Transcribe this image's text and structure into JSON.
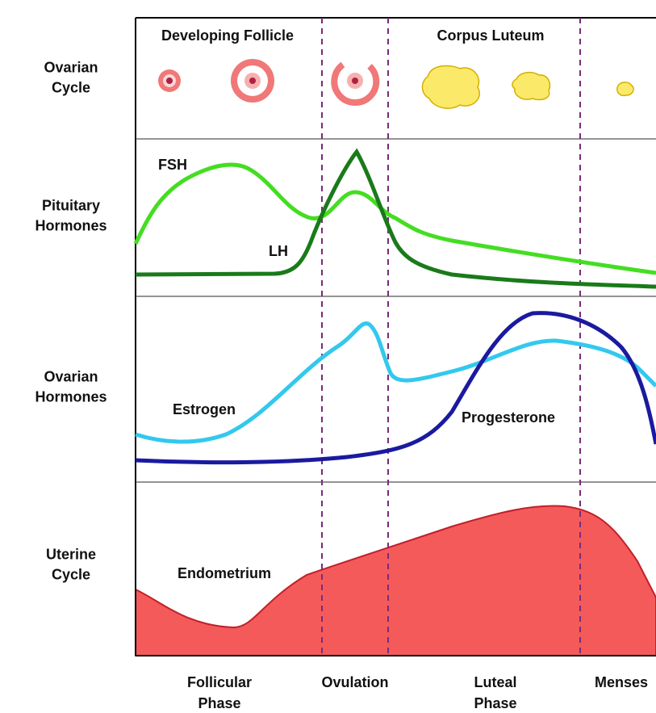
{
  "rows": [
    [
      "Ovarian",
      "Cycle"
    ],
    [
      "Pituitary",
      "Hormones"
    ],
    [
      "Ovarian",
      "Hormones"
    ],
    [
      "Uterine",
      "Cycle"
    ]
  ],
  "ovarian_cycle": {
    "developing": "Developing Follicle",
    "corpus": "Corpus Luteum"
  },
  "curves": {
    "fsh": "FSH",
    "lh": "LH",
    "estrogen": "Estrogen",
    "progesterone": "Progesterone",
    "endometrium": "Endometrium"
  },
  "phases": [
    [
      "Follicular",
      "Phase"
    ],
    [
      "Ovulation"
    ],
    [
      "Luteal",
      "Phase"
    ],
    [
      "Menses"
    ]
  ]
}
